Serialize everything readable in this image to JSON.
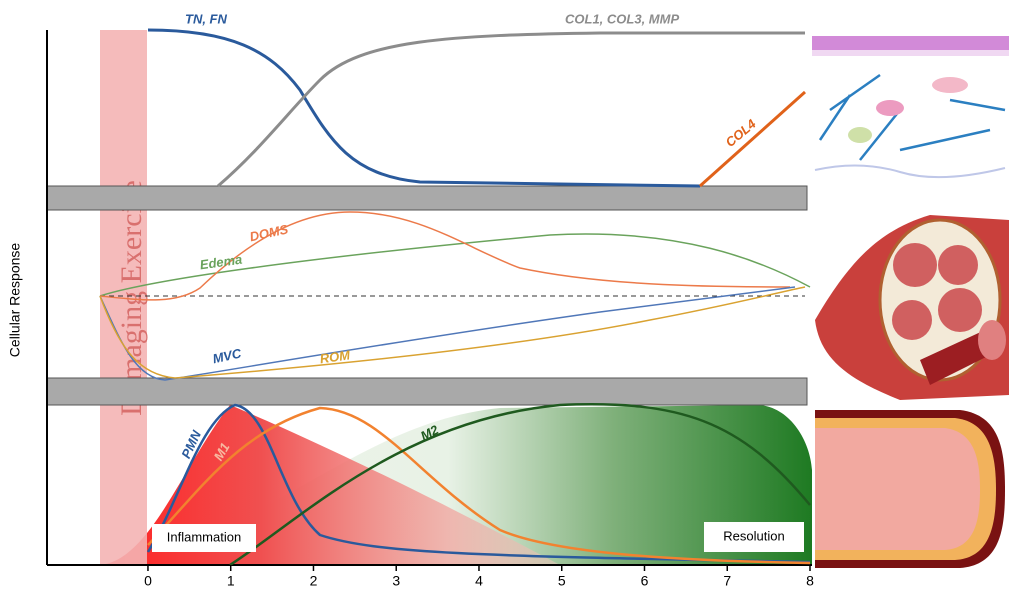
{
  "chart_data": {
    "type": "line",
    "y_label": "Cellular Response",
    "band_label": "Damaging Exercise",
    "xlim": [
      -1.22,
      8
    ],
    "xticks": [
      0,
      1,
      2,
      3,
      4,
      5,
      6,
      7,
      8
    ],
    "labels": {
      "tnfn": "TN, FN",
      "col": "COL1, COL3, MMP",
      "col4": "COL4",
      "doms": "DOMS",
      "edema": "Edema",
      "mvc": "MVC",
      "rom": "ROM",
      "pmn": "PMN",
      "m1": "M1",
      "m2": "M2",
      "inflammation": "Inflammation",
      "resolution": "Resolution"
    }
  }
}
